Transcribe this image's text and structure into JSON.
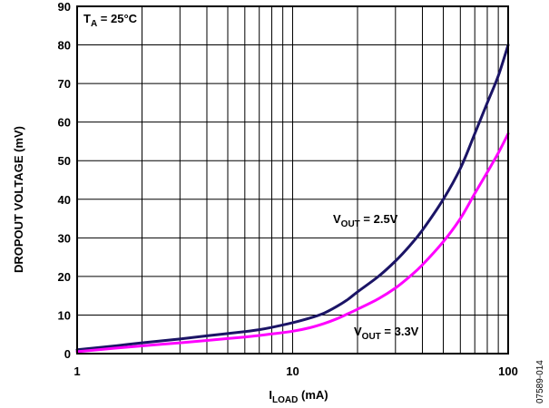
{
  "chart_data": {
    "type": "line",
    "xscale": "log",
    "xlim": [
      1,
      100
    ],
    "ylim": [
      0,
      90
    ],
    "grid": true,
    "xlabel": {
      "main": "I",
      "sub": "LOAD",
      "rest": " (mA)"
    },
    "ylabel": "DROPOUT VOLTAGE (mV)",
    "xticks": [
      1,
      10,
      100
    ],
    "yticks": [
      0,
      10,
      20,
      30,
      40,
      50,
      60,
      70,
      80,
      90
    ],
    "conditions": {
      "main": "T",
      "sub": "A",
      "rest": " = 25°C"
    },
    "figure_id": "07589-014",
    "series": [
      {
        "label": {
          "main": "V",
          "sub": "OUT",
          "rest": " = 2.5V"
        },
        "color": "#1b1466",
        "x": [
          1,
          1.5,
          2,
          3,
          4,
          5,
          6,
          7,
          8,
          10,
          12,
          14,
          16,
          18,
          20,
          25,
          30,
          35,
          40,
          50,
          60,
          70,
          80,
          90,
          100
        ],
        "y": [
          1,
          2,
          2.8,
          3.8,
          4.6,
          5.2,
          5.7,
          6.2,
          6.8,
          8,
          9.2,
          10.5,
          12.2,
          14,
          16,
          20,
          24,
          28,
          32,
          40,
          48,
          57,
          65,
          72,
          80
        ]
      },
      {
        "label": {
          "main": "V",
          "sub": "OUT",
          "rest": " = 3.3V"
        },
        "color": "#ff00ff",
        "x": [
          1,
          1.5,
          2,
          3,
          4,
          5,
          6,
          7,
          8,
          10,
          12,
          14,
          16,
          18,
          20,
          25,
          30,
          35,
          40,
          50,
          60,
          70,
          80,
          90,
          100
        ],
        "y": [
          0.5,
          1.4,
          2,
          2.8,
          3.4,
          3.9,
          4.3,
          4.7,
          5.1,
          5.8,
          6.7,
          7.8,
          9,
          10.3,
          11.5,
          14.2,
          17,
          20,
          23,
          29,
          35,
          41.5,
          47,
          52,
          57
        ]
      }
    ]
  }
}
